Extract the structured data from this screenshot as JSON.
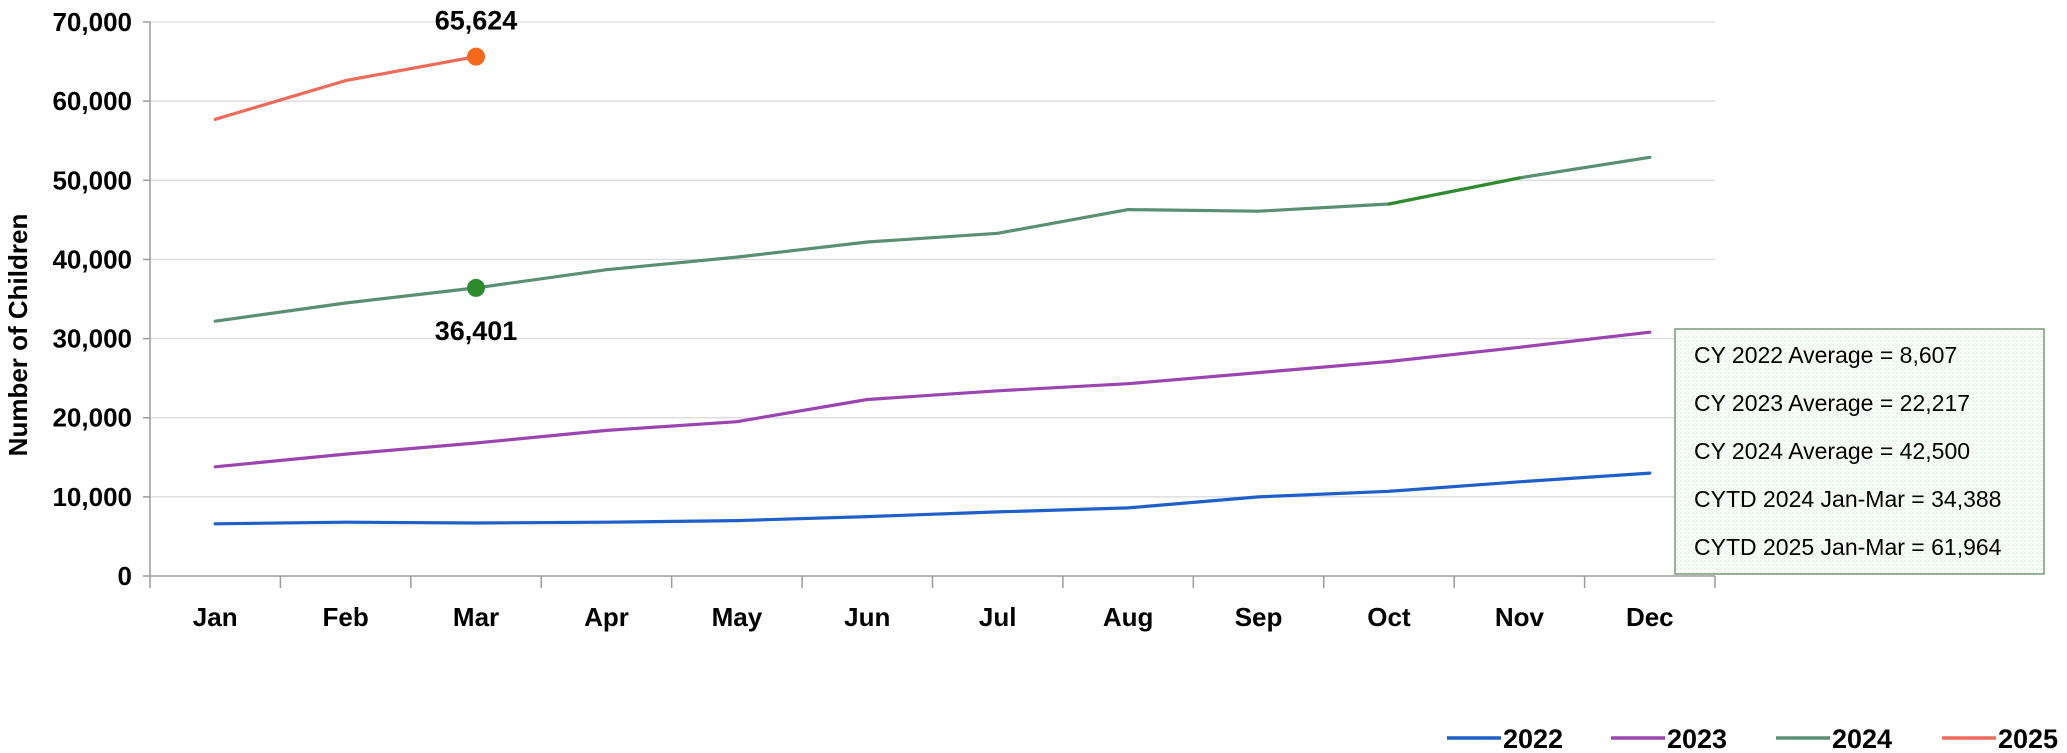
{
  "chart_data": {
    "type": "line",
    "ylabel": "Number of Children",
    "xlabel": "",
    "ylim": [
      0,
      70000
    ],
    "yticks": [
      "0",
      "10,000",
      "20,000",
      "30,000",
      "40,000",
      "50,000",
      "60,000",
      "70,000"
    ],
    "categories": [
      "Jan",
      "Feb",
      "Mar",
      "Apr",
      "May",
      "Jun",
      "Jul",
      "Aug",
      "Sep",
      "Oct",
      "Nov",
      "Dec"
    ],
    "grid": true,
    "legend_position": "bottom-right",
    "series": [
      {
        "name": "2022",
        "color": "#1f5fc8",
        "values": [
          6600,
          6800,
          6700,
          6800,
          7000,
          7500,
          8100,
          8600,
          10000,
          10700,
          11900,
          13000
        ]
      },
      {
        "name": "2023",
        "color": "#9b45b0",
        "values": [
          13800,
          15400,
          16800,
          18400,
          19500,
          22300,
          23400,
          24300,
          25700,
          27100,
          28900,
          30800
        ]
      },
      {
        "name": "2024",
        "color": "#5a8f73",
        "highlight_color": "#2e8b2e",
        "values": [
          32200,
          34500,
          36401,
          38700,
          40300,
          42200,
          43300,
          46300,
          46100,
          47000,
          50300,
          52900
        ]
      },
      {
        "name": "2025",
        "color": "#ef6a5a",
        "values": [
          57700,
          62600,
          65624,
          null,
          null,
          null,
          null,
          null,
          null,
          null,
          null,
          null
        ]
      }
    ],
    "annotations": [
      {
        "label": "65,624",
        "series": "2025",
        "category": "Mar",
        "marker_color": "#f5691b"
      },
      {
        "label": "36,401",
        "series": "2024",
        "category": "Mar",
        "marker_color": "#2e8b2e"
      }
    ],
    "stats_box": [
      "CY 2022 Average = 8,607",
      "CY 2023 Average = 22,217",
      "CY 2024 Average = 42,500",
      "CYTD 2024 Jan-Mar = 34,388",
      "CYTD 2025 Jan-Mar = 61,964"
    ],
    "colors": {
      "grid": "#d9d9d9",
      "axis": "#9c9c9c",
      "box_border": "#7a9a7a",
      "box_fill": "#f3faf3"
    }
  }
}
